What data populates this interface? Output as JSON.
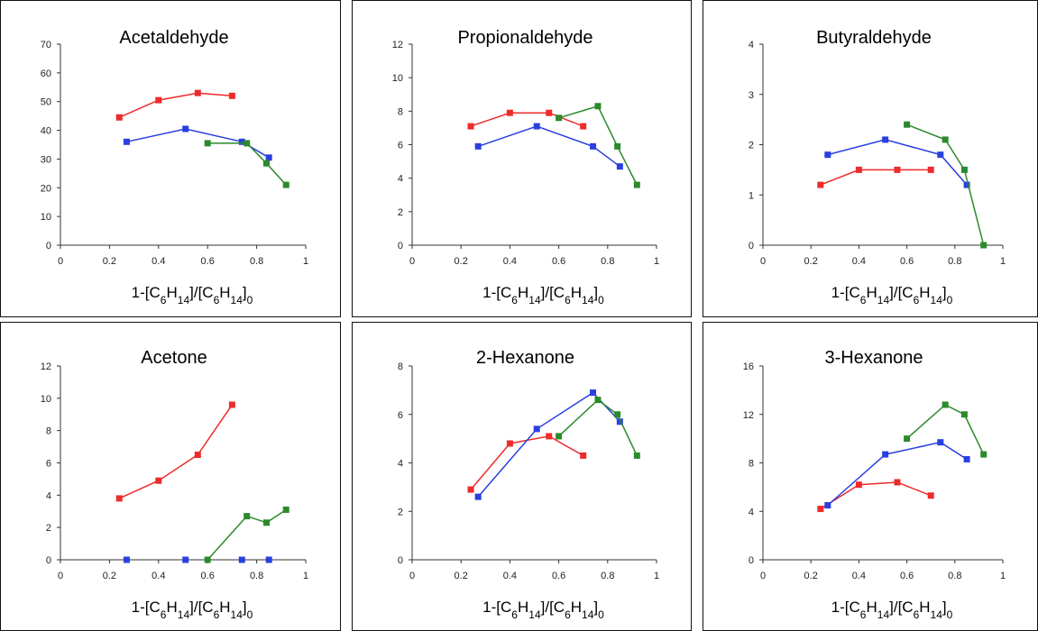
{
  "colors": {
    "red": "#ee2b2b",
    "blue": "#2a3fe0",
    "green": "#2b8a2b"
  },
  "xlabel_parts": [
    "1-[C",
    "6",
    "H",
    "14",
    "]/[C",
    "6",
    "H",
    "14",
    "]",
    "0"
  ],
  "chart_data": [
    {
      "type": "line",
      "title": "Acetaldehyde",
      "xlim": [
        0,
        1
      ],
      "ylim": [
        0,
        70
      ],
      "xticks": [
        "0",
        "0.2",
        "0.4",
        "0.6",
        "0.8",
        "1"
      ],
      "yticks": [
        "0",
        "10",
        "20",
        "30",
        "40",
        "50",
        "60",
        "70"
      ],
      "series": [
        {
          "color": "red",
          "x": [
            0.24,
            0.4,
            0.56,
            0.7
          ],
          "y": [
            44.5,
            50.5,
            53,
            52
          ]
        },
        {
          "color": "blue",
          "x": [
            0.27,
            0.51,
            0.74,
            0.85
          ],
          "y": [
            36,
            40.5,
            36,
            30.5
          ]
        },
        {
          "color": "green",
          "x": [
            0.6,
            0.76,
            0.84,
            0.92
          ],
          "y": [
            35.5,
            35.5,
            28.5,
            21
          ]
        }
      ]
    },
    {
      "type": "line",
      "title": "Propionaldehyde",
      "xlim": [
        0,
        1
      ],
      "ylim": [
        0,
        12
      ],
      "xticks": [
        "0",
        "0.2",
        "0.4",
        "0.6",
        "0.8",
        "1"
      ],
      "yticks": [
        "0",
        "2",
        "4",
        "6",
        "8",
        "10",
        "12"
      ],
      "series": [
        {
          "color": "red",
          "x": [
            0.24,
            0.4,
            0.56,
            0.7
          ],
          "y": [
            7.1,
            7.9,
            7.9,
            7.1
          ]
        },
        {
          "color": "blue",
          "x": [
            0.27,
            0.51,
            0.74,
            0.85
          ],
          "y": [
            5.9,
            7.1,
            5.9,
            4.7
          ]
        },
        {
          "color": "green",
          "x": [
            0.6,
            0.76,
            0.84,
            0.92
          ],
          "y": [
            7.6,
            8.3,
            5.9,
            3.6
          ]
        }
      ]
    },
    {
      "type": "line",
      "title": "Butyraldehyde",
      "xlim": [
        0,
        1
      ],
      "ylim": [
        0,
        4
      ],
      "xticks": [
        "0",
        "0.2",
        "0.4",
        "0.6",
        "0.8",
        "1"
      ],
      "yticks": [
        "0",
        "1",
        "2",
        "3",
        "4"
      ],
      "series": [
        {
          "color": "red",
          "x": [
            0.24,
            0.4,
            0.56,
            0.7
          ],
          "y": [
            1.2,
            1.5,
            1.5,
            1.5
          ]
        },
        {
          "color": "blue",
          "x": [
            0.27,
            0.51,
            0.74,
            0.85
          ],
          "y": [
            1.8,
            2.1,
            1.8,
            1.2
          ]
        },
        {
          "color": "green",
          "x": [
            0.6,
            0.76,
            0.84,
            0.92
          ],
          "y": [
            2.4,
            2.1,
            1.5,
            0
          ]
        }
      ]
    },
    {
      "type": "line",
      "title": "Acetone",
      "xlim": [
        0,
        1
      ],
      "ylim": [
        0,
        12
      ],
      "xticks": [
        "0",
        "0.2",
        "0.4",
        "0.6",
        "0.8",
        "1"
      ],
      "yticks": [
        "0",
        "2",
        "4",
        "6",
        "8",
        "10",
        "12"
      ],
      "series": [
        {
          "color": "red",
          "x": [
            0.24,
            0.4,
            0.56,
            0.7
          ],
          "y": [
            3.8,
            4.9,
            6.5,
            9.6
          ]
        },
        {
          "color": "blue",
          "x": [
            0.27,
            0.51,
            0.74,
            0.85
          ],
          "y": [
            0,
            0,
            0,
            0
          ],
          "markers_only": true
        },
        {
          "color": "green",
          "x": [
            0.6,
            0.76,
            0.84,
            0.92
          ],
          "y": [
            0,
            2.7,
            2.3,
            3.1
          ]
        }
      ]
    },
    {
      "type": "line",
      "title": "2-Hexanone",
      "xlim": [
        0,
        1
      ],
      "ylim": [
        0,
        8
      ],
      "xticks": [
        "0",
        "0.2",
        "0.4",
        "0.6",
        "0.8",
        "1"
      ],
      "yticks": [
        "0",
        "2",
        "4",
        "6",
        "8"
      ],
      "series": [
        {
          "color": "red",
          "x": [
            0.24,
            0.4,
            0.56,
            0.7
          ],
          "y": [
            2.9,
            4.8,
            5.1,
            4.3
          ]
        },
        {
          "color": "blue",
          "x": [
            0.27,
            0.51,
            0.74,
            0.85
          ],
          "y": [
            2.6,
            5.4,
            6.9,
            5.7
          ]
        },
        {
          "color": "green",
          "x": [
            0.6,
            0.76,
            0.84,
            0.92
          ],
          "y": [
            5.1,
            6.6,
            6.0,
            4.3
          ]
        }
      ]
    },
    {
      "type": "line",
      "title": "3-Hexanone",
      "xlim": [
        0,
        1
      ],
      "ylim": [
        0,
        16
      ],
      "xticks": [
        "0",
        "0.2",
        "0.4",
        "0.6",
        "0.8",
        "1"
      ],
      "yticks": [
        "0",
        "4",
        "8",
        "12",
        "16"
      ],
      "series": [
        {
          "color": "red",
          "x": [
            0.24,
            0.4,
            0.56,
            0.7
          ],
          "y": [
            4.2,
            6.2,
            6.4,
            5.3
          ]
        },
        {
          "color": "blue",
          "x": [
            0.27,
            0.51,
            0.74,
            0.85
          ],
          "y": [
            4.5,
            8.7,
            9.7,
            8.3
          ]
        },
        {
          "color": "green",
          "x": [
            0.6,
            0.76,
            0.84,
            0.92
          ],
          "y": [
            10.0,
            12.8,
            12.0,
            8.7
          ]
        }
      ]
    }
  ]
}
